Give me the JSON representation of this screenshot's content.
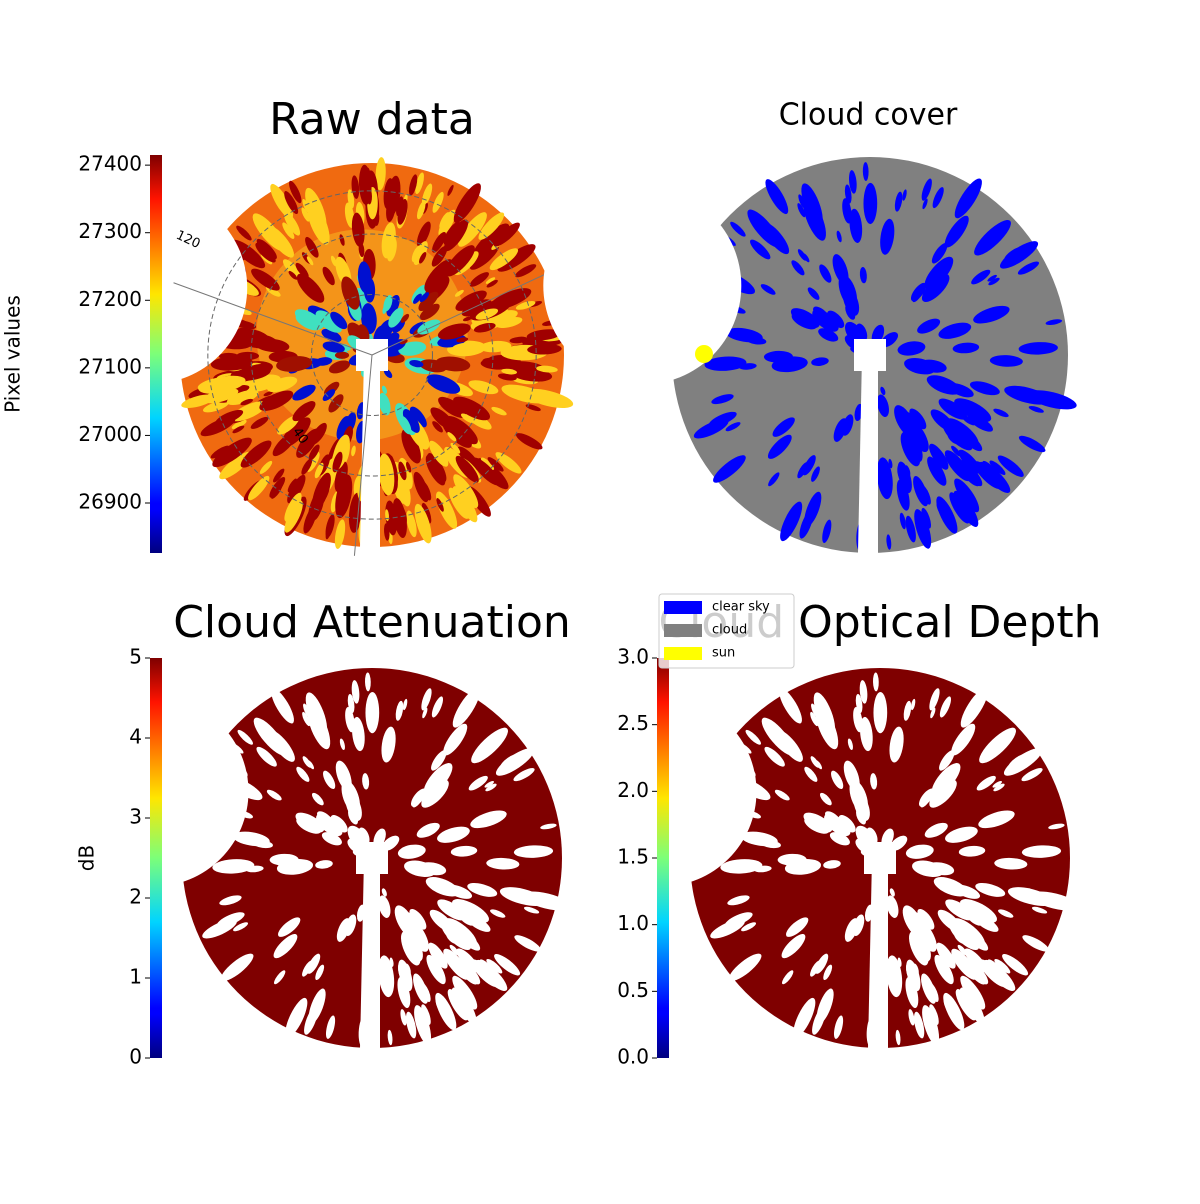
{
  "chart_data": [
    {
      "type": "image",
      "title": "Raw data",
      "colorbar_label": "Pixel values",
      "colormap": "jet",
      "clim": [
        26826,
        27415
      ],
      "cticks": [
        26900,
        27000,
        27100,
        27200,
        27300,
        27400
      ],
      "annotations": [
        "120",
        "40"
      ]
    },
    {
      "type": "image",
      "title": "Cloud cover",
      "categories": [
        "clear sky",
        "cloud",
        "sun"
      ],
      "colors": [
        "#0000ff",
        "#808080",
        "#ffff00"
      ]
    },
    {
      "type": "image",
      "title": "Cloud Attenuation",
      "colorbar_label": "dB",
      "colormap": "jet",
      "clim": [
        0,
        5
      ],
      "cticks": [
        0,
        1,
        2,
        3,
        4,
        5
      ]
    },
    {
      "type": "image",
      "title": "Cloud Optical Depth",
      "colormap": "jet",
      "clim": [
        0,
        3
      ],
      "cticks": [
        {
          "value": 0,
          "label": "0.0"
        },
        {
          "value": 0.5,
          "label": "0.5"
        },
        {
          "value": 1,
          "label": "1.0"
        },
        {
          "value": 1.5,
          "label": "1.5"
        },
        {
          "value": 2,
          "label": "2.0"
        },
        {
          "value": 2.5,
          "label": "2.5"
        },
        {
          "value": 3,
          "label": "3.0"
        }
      ]
    }
  ]
}
